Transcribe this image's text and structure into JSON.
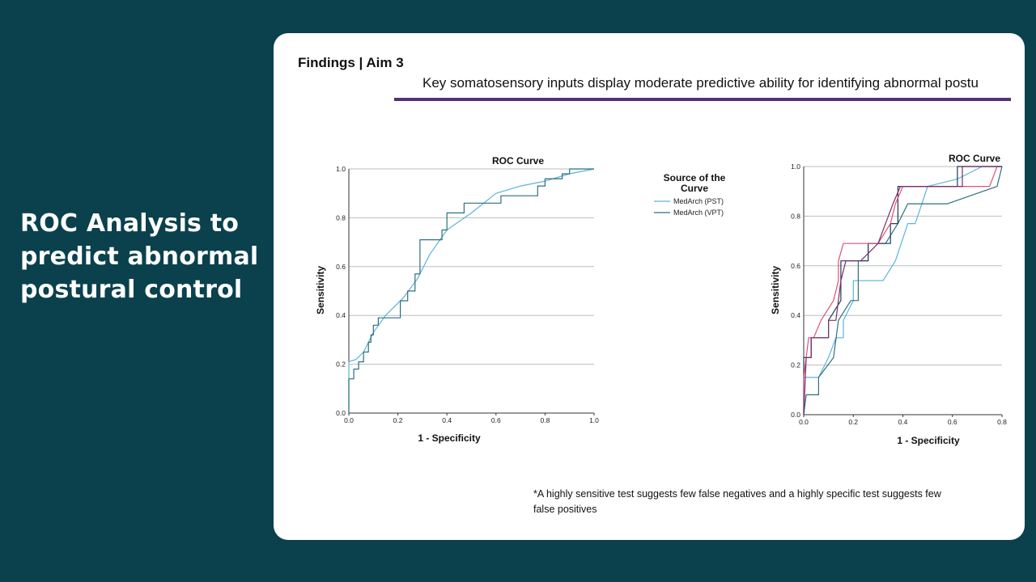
{
  "slide": {
    "left_title": "ROC Analysis to predict abnormal postural control",
    "header": "Findings | Aim 3",
    "subtitle": "Key somatosensory inputs display moderate predictive ability for identifying abnormal postu",
    "footnote": "*A highly sensitive test suggests few false negatives and a highly specific test suggests few false positives"
  },
  "colors": {
    "background": "#0a414d",
    "card": "#ffffff",
    "rule": "#54307a",
    "pst": "#5ab4dc",
    "vpt": "#2f6f7e",
    "dark_navy": "#1f3b57",
    "pink": "#e0507a",
    "purple": "#7a2e6b"
  },
  "chart_data": [
    {
      "type": "line",
      "title": "ROC Curve",
      "xlabel": "1 - Specificity",
      "ylabel": "Sensitivity",
      "xlim": [
        0,
        1
      ],
      "ylim": [
        0,
        1
      ],
      "xticks": [
        "0.0",
        "0.2",
        "0.4",
        "0.6",
        "0.8",
        "1.0"
      ],
      "yticks": [
        "0.0",
        "0.2",
        "0.4",
        "0.6",
        "0.8",
        "1.0"
      ],
      "grid": "horizontal",
      "legend_title": "Source of the Curve",
      "legend_position": "right",
      "series": [
        {
          "name": "MedArch (PST)",
          "color": "#5ab4dc",
          "points": [
            [
              0,
              0
            ],
            [
              0,
              0.21
            ],
            [
              0.03,
              0.22
            ],
            [
              0.06,
              0.25
            ],
            [
              0.1,
              0.33
            ],
            [
              0.15,
              0.4
            ],
            [
              0.22,
              0.47
            ],
            [
              0.28,
              0.55
            ],
            [
              0.33,
              0.65
            ],
            [
              0.4,
              0.75
            ],
            [
              0.5,
              0.82
            ],
            [
              0.6,
              0.9
            ],
            [
              0.7,
              0.93
            ],
            [
              0.8,
              0.95
            ],
            [
              0.9,
              0.98
            ],
            [
              1,
              1
            ]
          ]
        },
        {
          "name": "MedArch (VPT)",
          "color": "#2f6f7e",
          "points": [
            [
              0,
              0
            ],
            [
              0,
              0.14
            ],
            [
              0.02,
              0.14
            ],
            [
              0.02,
              0.18
            ],
            [
              0.04,
              0.18
            ],
            [
              0.04,
              0.21
            ],
            [
              0.06,
              0.21
            ],
            [
              0.06,
              0.25
            ],
            [
              0.08,
              0.25
            ],
            [
              0.08,
              0.29
            ],
            [
              0.09,
              0.29
            ],
            [
              0.09,
              0.32
            ],
            [
              0.1,
              0.32
            ],
            [
              0.1,
              0.36
            ],
            [
              0.12,
              0.36
            ],
            [
              0.12,
              0.39
            ],
            [
              0.21,
              0.39
            ],
            [
              0.21,
              0.46
            ],
            [
              0.24,
              0.46
            ],
            [
              0.24,
              0.5
            ],
            [
              0.27,
              0.5
            ],
            [
              0.27,
              0.57
            ],
            [
              0.29,
              0.57
            ],
            [
              0.29,
              0.71
            ],
            [
              0.38,
              0.71
            ],
            [
              0.38,
              0.75
            ],
            [
              0.4,
              0.75
            ],
            [
              0.4,
              0.82
            ],
            [
              0.47,
              0.82
            ],
            [
              0.47,
              0.86
            ],
            [
              0.62,
              0.86
            ],
            [
              0.62,
              0.89
            ],
            [
              0.77,
              0.89
            ],
            [
              0.77,
              0.93
            ],
            [
              0.8,
              0.93
            ],
            [
              0.8,
              0.96
            ],
            [
              0.87,
              0.96
            ],
            [
              0.87,
              0.98
            ],
            [
              0.9,
              0.98
            ],
            [
              0.9,
              1
            ],
            [
              1,
              1
            ]
          ]
        }
      ]
    },
    {
      "type": "line",
      "title": "ROC Curve",
      "xlabel": "1 - Specificity",
      "ylabel": "Sensitivity",
      "xlim": [
        0,
        0.8
      ],
      "ylim": [
        0,
        1
      ],
      "xticks": [
        "0.0",
        "0.2",
        "0.4",
        "0.6",
        "0.8"
      ],
      "yticks": [
        "0.0",
        "0.2",
        "0.4",
        "0.6",
        "0.8",
        "1.0"
      ],
      "grid": "horizontal",
      "series": [
        {
          "color": "#5ab4dc",
          "points": [
            [
              0,
              0
            ],
            [
              0,
              0.15
            ],
            [
              0.06,
              0.15
            ],
            [
              0.1,
              0.23
            ],
            [
              0.13,
              0.31
            ],
            [
              0.16,
              0.31
            ],
            [
              0.16,
              0.38
            ],
            [
              0.2,
              0.46
            ],
            [
              0.2,
              0.54
            ],
            [
              0.32,
              0.54
            ],
            [
              0.37,
              0.62
            ],
            [
              0.42,
              0.77
            ],
            [
              0.45,
              0.77
            ],
            [
              0.5,
              0.92
            ],
            [
              0.62,
              0.95
            ],
            [
              0.72,
              1
            ],
            [
              0.8,
              1
            ]
          ]
        },
        {
          "color": "#2f6f7e",
          "points": [
            [
              0,
              0
            ],
            [
              0.01,
              0.08
            ],
            [
              0.06,
              0.08
            ],
            [
              0.06,
              0.15
            ],
            [
              0.12,
              0.23
            ],
            [
              0.14,
              0.38
            ],
            [
              0.19,
              0.46
            ],
            [
              0.22,
              0.46
            ],
            [
              0.22,
              0.62
            ],
            [
              0.26,
              0.62
            ],
            [
              0.26,
              0.69
            ],
            [
              0.33,
              0.69
            ],
            [
              0.38,
              0.77
            ],
            [
              0.42,
              0.85
            ],
            [
              0.58,
              0.85
            ],
            [
              0.78,
              0.92
            ],
            [
              0.8,
              1
            ]
          ]
        },
        {
          "color": "#1f3b57",
          "points": [
            [
              0,
              0
            ],
            [
              0,
              0.23
            ],
            [
              0.03,
              0.23
            ],
            [
              0.03,
              0.31
            ],
            [
              0.1,
              0.31
            ],
            [
              0.1,
              0.38
            ],
            [
              0.15,
              0.46
            ],
            [
              0.15,
              0.62
            ],
            [
              0.26,
              0.62
            ],
            [
              0.26,
              0.69
            ],
            [
              0.35,
              0.69
            ],
            [
              0.35,
              0.77
            ],
            [
              0.38,
              0.77
            ],
            [
              0.38,
              0.92
            ],
            [
              0.62,
              0.92
            ],
            [
              0.62,
              1
            ],
            [
              0.8,
              1
            ]
          ]
        },
        {
          "color": "#e0507a",
          "points": [
            [
              0,
              0
            ],
            [
              0,
              0.15
            ],
            [
              0.02,
              0.31
            ],
            [
              0.04,
              0.31
            ],
            [
              0.07,
              0.38
            ],
            [
              0.12,
              0.46
            ],
            [
              0.14,
              0.54
            ],
            [
              0.14,
              0.62
            ],
            [
              0.16,
              0.69
            ],
            [
              0.3,
              0.69
            ],
            [
              0.35,
              0.77
            ],
            [
              0.37,
              0.85
            ],
            [
              0.4,
              0.92
            ],
            [
              0.68,
              0.92
            ],
            [
              0.75,
              0.92
            ],
            [
              0.78,
              1
            ],
            [
              0.8,
              1
            ]
          ]
        },
        {
          "color": "#7a2e6b",
          "points": [
            [
              0,
              0
            ],
            [
              0.01,
              0.23
            ],
            [
              0.03,
              0.23
            ],
            [
              0.03,
              0.31
            ],
            [
              0.1,
              0.31
            ],
            [
              0.1,
              0.38
            ],
            [
              0.13,
              0.38
            ],
            [
              0.15,
              0.54
            ],
            [
              0.17,
              0.62
            ],
            [
              0.23,
              0.62
            ],
            [
              0.3,
              0.69
            ],
            [
              0.33,
              0.77
            ],
            [
              0.36,
              0.85
            ],
            [
              0.39,
              0.92
            ],
            [
              0.64,
              0.92
            ],
            [
              0.64,
              1
            ],
            [
              0.8,
              1
            ]
          ]
        }
      ]
    }
  ]
}
